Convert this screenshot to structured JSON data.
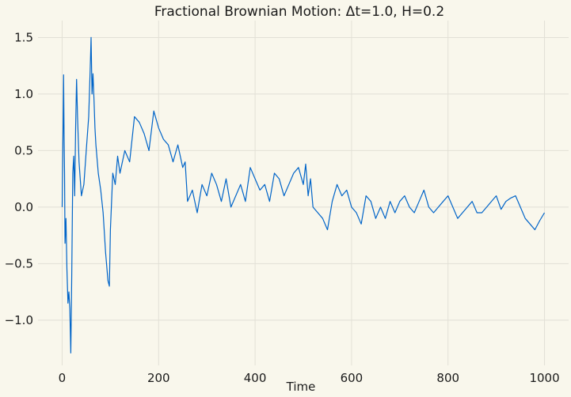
{
  "chart_data": {
    "type": "line",
    "title": "Fractional Brownian Motion: Δt=1.0, H=0.2",
    "xlabel": "Time",
    "ylabel": "",
    "xlim": [
      -50,
      1050
    ],
    "ylim": [
      -1.4,
      1.65
    ],
    "grid": true,
    "x_ticks": [
      0,
      200,
      400,
      600,
      800,
      1000
    ],
    "x_tick_labels": [
      "0",
      "200",
      "400",
      "600",
      "800",
      "1000"
    ],
    "y_ticks": [
      -1.0,
      -0.5,
      0.0,
      0.5,
      1.0,
      1.5
    ],
    "y_tick_labels": [
      "−1.0",
      "−0.5",
      "0.0",
      "0.5",
      "1.0",
      "1.5"
    ],
    "colors": {
      "line": "#0064c8",
      "background": "#f9f7ec",
      "grid": "#e2e0d6"
    },
    "series": [
      {
        "x": [
          0,
          2,
          3,
          4,
          5,
          6,
          8,
          10,
          12,
          14,
          16,
          18,
          20,
          22,
          24,
          26,
          28,
          30,
          32,
          35,
          40,
          45,
          50,
          55,
          58,
          60,
          62,
          64,
          66,
          68,
          70,
          75,
          80,
          85,
          90,
          95,
          98,
          100,
          102,
          105,
          110,
          115,
          120,
          130,
          140,
          150,
          160,
          170,
          180,
          190,
          200,
          210,
          220,
          230,
          240,
          250,
          255,
          260,
          270,
          280,
          290,
          300,
          310,
          320,
          330,
          340,
          350,
          360,
          370,
          380,
          390,
          400,
          410,
          420,
          430,
          440,
          450,
          460,
          470,
          480,
          490,
          500,
          505,
          510,
          515,
          520,
          530,
          540,
          550,
          560,
          570,
          580,
          590,
          600,
          610,
          620,
          630,
          640,
          650,
          660,
          670,
          680,
          690,
          700,
          710,
          720,
          730,
          740,
          750,
          760,
          770,
          780,
          790,
          800,
          810,
          820,
          830,
          840,
          850,
          860,
          870,
          880,
          890,
          900,
          910,
          920,
          930,
          940,
          950,
          960,
          970,
          980,
          990,
          1000
        ],
        "y": [
          0.0,
          0.75,
          1.17,
          0.65,
          0.3,
          -0.32,
          -0.1,
          -0.55,
          -0.85,
          -0.75,
          -0.9,
          -1.29,
          -0.6,
          0.3,
          0.45,
          0.1,
          0.7,
          1.13,
          0.8,
          0.4,
          0.1,
          0.2,
          0.5,
          0.8,
          1.2,
          1.5,
          1.0,
          1.18,
          0.95,
          0.7,
          0.55,
          0.3,
          0.15,
          -0.05,
          -0.4,
          -0.65,
          -0.7,
          -0.2,
          0.0,
          0.3,
          0.2,
          0.45,
          0.3,
          0.5,
          0.4,
          0.8,
          0.75,
          0.65,
          0.5,
          0.85,
          0.7,
          0.6,
          0.55,
          0.4,
          0.55,
          0.35,
          0.4,
          0.05,
          0.15,
          -0.05,
          0.2,
          0.1,
          0.3,
          0.2,
          0.05,
          0.25,
          0.0,
          0.1,
          0.2,
          0.05,
          0.35,
          0.25,
          0.15,
          0.2,
          0.05,
          0.3,
          0.25,
          0.1,
          0.2,
          0.3,
          0.35,
          0.2,
          0.38,
          0.1,
          0.25,
          0.0,
          -0.05,
          -0.1,
          -0.2,
          0.05,
          0.2,
          0.1,
          0.15,
          0.0,
          -0.05,
          -0.15,
          0.1,
          0.05,
          -0.1,
          0.0,
          -0.1,
          0.05,
          -0.05,
          0.05,
          0.1,
          0.0,
          -0.05,
          0.05,
          0.15,
          0.0,
          -0.05,
          0.0,
          0.05,
          0.1,
          0.0,
          -0.1,
          -0.05,
          0.0,
          0.05,
          -0.05,
          -0.05,
          0.0,
          0.05,
          0.1,
          -0.02,
          0.05,
          0.08,
          0.1,
          0.0,
          -0.1,
          -0.15,
          -0.2,
          -0.12,
          -0.05
        ]
      }
    ]
  }
}
